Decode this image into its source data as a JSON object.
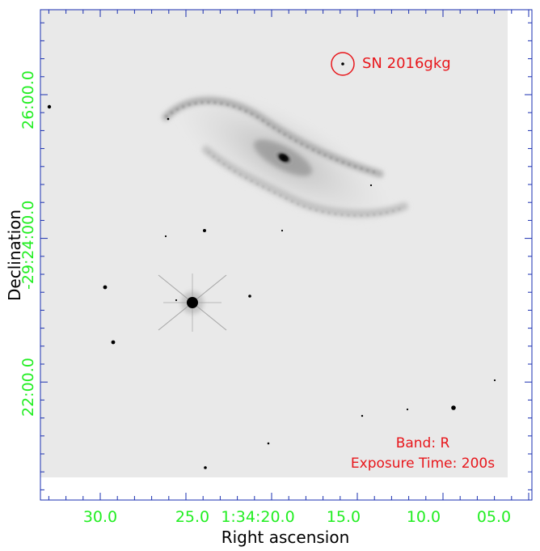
{
  "colors": {
    "tick_label": "#22ee22",
    "annotation": "#e8161b",
    "axis_frame": "#1a2fb0",
    "axis_title": "#000000",
    "sky_background": "#e9e9e9"
  },
  "axes": {
    "xlabel": "Right ascension",
    "ylabel": "Declination",
    "ra_ticks": [
      "30.0",
      "25.0",
      "1:34:20.0",
      "15.0",
      "10.0",
      "05.0"
    ],
    "dec_ticks": [
      "26:00.0",
      "-29:24:00.0",
      "22:00.0"
    ]
  },
  "annotations": {
    "supernova": "SN 2016gkg",
    "band": "Band: R",
    "exposure": "Exposure Time: 200s"
  }
}
